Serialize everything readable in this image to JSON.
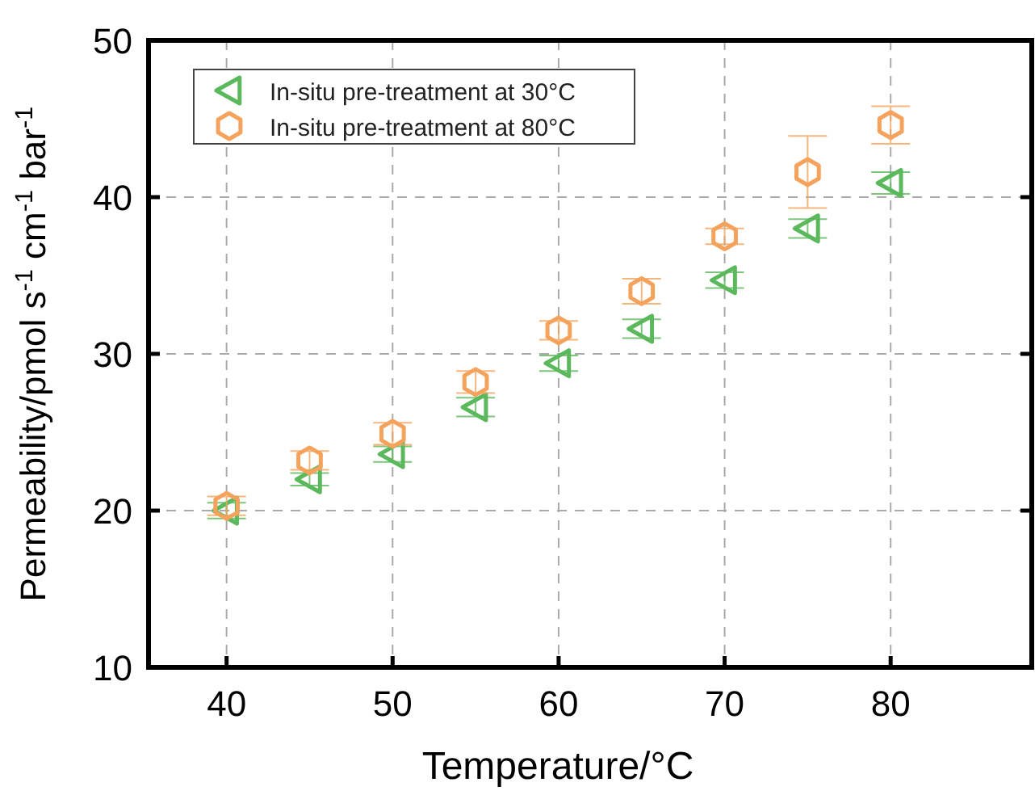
{
  "chart_data": {
    "type": "scatter",
    "xlabel": "Temperature/°C",
    "ylabel": "Permeability/pmol s$^{-1}$ cm$^{-1}$ bar$^{-1}$",
    "x": [
      40,
      45,
      50,
      55,
      60,
      65,
      70,
      75,
      80
    ],
    "xlim": [
      35.3,
      88.5
    ],
    "xticks": [
      40,
      50,
      60,
      70,
      80
    ],
    "ylim": [
      10,
      50
    ],
    "yticks": [
      10,
      20,
      30,
      40,
      50
    ],
    "grid": true,
    "legend": "top left",
    "series": [
      {
        "name": "In-situ pre-treatment at 30°C",
        "color": "#5cb85c",
        "marker": "triangle",
        "values": [
          20.0,
          22.0,
          23.6,
          26.6,
          29.4,
          31.6,
          34.7,
          38.0,
          40.9
        ],
        "errors": [
          0.5,
          0.4,
          0.5,
          0.6,
          0.5,
          0.6,
          0.5,
          0.6,
          0.7
        ]
      },
      {
        "name": "In-situ pre-treatment at 80°C",
        "color": "#f5a35c",
        "marker": "circle",
        "values": [
          20.3,
          23.2,
          24.9,
          28.2,
          31.5,
          34.0,
          37.5,
          41.6,
          44.6
        ],
        "errors": [
          0.6,
          0.6,
          0.7,
          0.7,
          0.6,
          0.8,
          0.5,
          2.3,
          1.2
        ]
      }
    ]
  }
}
